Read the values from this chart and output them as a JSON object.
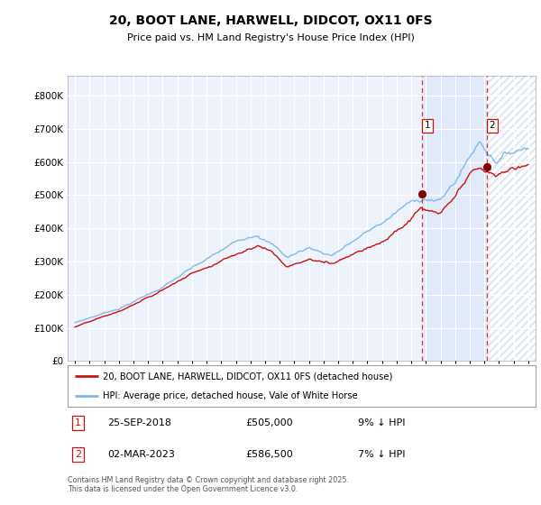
{
  "title": "20, BOOT LANE, HARWELL, DIDCOT, OX11 0FS",
  "subtitle": "Price paid vs. HM Land Registry's House Price Index (HPI)",
  "background_color": "#ffffff",
  "plot_bg_color": "#eef2fb",
  "grid_color": "#ffffff",
  "hpi_color": "#7ab8e8",
  "price_color": "#cc1111",
  "vline_color": "#cc1111",
  "shade_color": "#dce8f8",
  "hatch_color": "#c8d4e8",
  "transactions": [
    {
      "date": 2018.73,
      "price": 505000,
      "label": "1"
    },
    {
      "date": 2023.17,
      "price": 586500,
      "label": "2"
    }
  ],
  "transaction_table": [
    {
      "num": "1",
      "date": "25-SEP-2018",
      "price": "£505,000",
      "note": "9% ↓ HPI"
    },
    {
      "num": "2",
      "date": "02-MAR-2023",
      "price": "£586,500",
      "note": "7% ↓ HPI"
    }
  ],
  "legend1": "20, BOOT LANE, HARWELL, DIDCOT, OX11 0FS (detached house)",
  "legend2": "HPI: Average price, detached house, Vale of White Horse",
  "footer": "Contains HM Land Registry data © Crown copyright and database right 2025.\nThis data is licensed under the Open Government Licence v3.0.",
  "ylim": [
    0,
    860000
  ],
  "yticks": [
    0,
    100000,
    200000,
    300000,
    400000,
    500000,
    600000,
    700000,
    800000
  ],
  "xlim": [
    1994.5,
    2026.5
  ],
  "xticks": [
    1995,
    1996,
    1997,
    1998,
    1999,
    2000,
    2001,
    2002,
    2003,
    2004,
    2005,
    2006,
    2007,
    2008,
    2009,
    2010,
    2011,
    2012,
    2013,
    2014,
    2015,
    2016,
    2017,
    2018,
    2019,
    2020,
    2021,
    2022,
    2023,
    2024,
    2025,
    2026
  ]
}
